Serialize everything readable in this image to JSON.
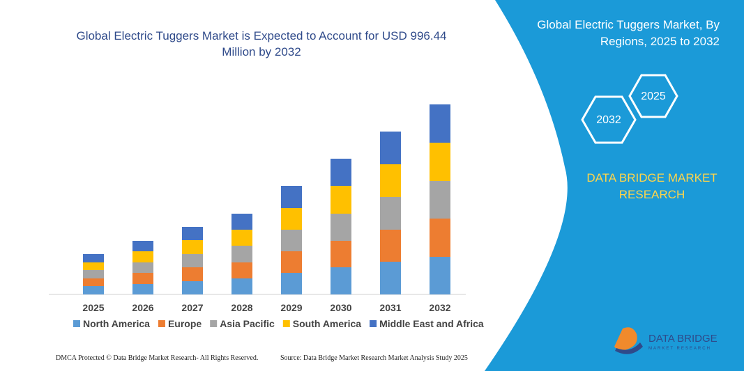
{
  "chart_data": {
    "type": "stacked-bar",
    "title": "Global Electric Tuggers Market is Expected to Account for USD 996.44 Million by 2032",
    "categories": [
      "2025",
      "2026",
      "2027",
      "2028",
      "2029",
      "2030",
      "2031",
      "2032"
    ],
    "series": [
      {
        "name": "North America",
        "color": "#5b9bd5",
        "values": [
          12,
          15,
          19,
          23,
          31,
          39,
          47,
          54
        ]
      },
      {
        "name": "Europe",
        "color": "#ed7d31",
        "values": [
          11,
          16,
          20,
          23,
          31,
          38,
          46,
          55
        ]
      },
      {
        "name": "Asia Pacific",
        "color": "#a5a5a5",
        "values": [
          12,
          15,
          19,
          24,
          31,
          39,
          47,
          54
        ]
      },
      {
        "name": "South America",
        "color": "#ffc000",
        "values": [
          11,
          16,
          20,
          23,
          31,
          40,
          47,
          55
        ]
      },
      {
        "name": "Middle East and Africa",
        "color": "#4472c4",
        "values": [
          12,
          15,
          19,
          23,
          32,
          39,
          47,
          55
        ]
      }
    ]
  },
  "panel": {
    "title": "Global Electric Tuggers Market, By Regions, 2025 to 2032",
    "hexagons": [
      "2032",
      "2025"
    ],
    "brand": "DATA BRIDGE MARKET RESEARCH"
  },
  "logo": {
    "name": "DATA BRIDGE",
    "tagline": "MARKET RESEARCH"
  },
  "footer": {
    "left": "DMCA Protected © Data Bridge Market Research- All Rights Reserved.",
    "right": "Source: Data Bridge Market Research Market Analysis Study 2025"
  }
}
